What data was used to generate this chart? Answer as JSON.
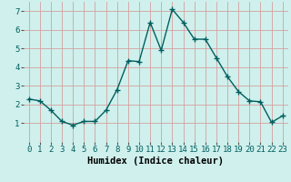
{
  "x": [
    0,
    1,
    2,
    3,
    4,
    5,
    6,
    7,
    8,
    9,
    10,
    11,
    12,
    13,
    14,
    15,
    16,
    17,
    18,
    19,
    20,
    21,
    22,
    23
  ],
  "y": [
    2.3,
    2.2,
    1.7,
    1.1,
    0.9,
    1.1,
    1.1,
    1.7,
    2.8,
    4.35,
    4.3,
    6.4,
    4.9,
    7.1,
    6.4,
    5.5,
    5.5,
    4.5,
    3.5,
    2.7,
    2.2,
    2.15,
    1.05,
    1.4
  ],
  "line_color": "#005f5f",
  "marker": "+",
  "marker_size": 4,
  "marker_linewidth": 1.0,
  "bg_color": "#cff0ec",
  "grid_color": "#d4a0a0",
  "xlabel": "Humidex (Indice chaleur)",
  "ylim": [
    0,
    7.5
  ],
  "xlim": [
    -0.5,
    23.5
  ],
  "yticks": [
    1,
    2,
    3,
    4,
    5,
    6,
    7
  ],
  "xticks": [
    0,
    1,
    2,
    3,
    4,
    5,
    6,
    7,
    8,
    9,
    10,
    11,
    12,
    13,
    14,
    15,
    16,
    17,
    18,
    19,
    20,
    21,
    22,
    23
  ],
  "xlabel_fontsize": 7.5,
  "tick_fontsize": 6.5,
  "line_width": 1.0
}
